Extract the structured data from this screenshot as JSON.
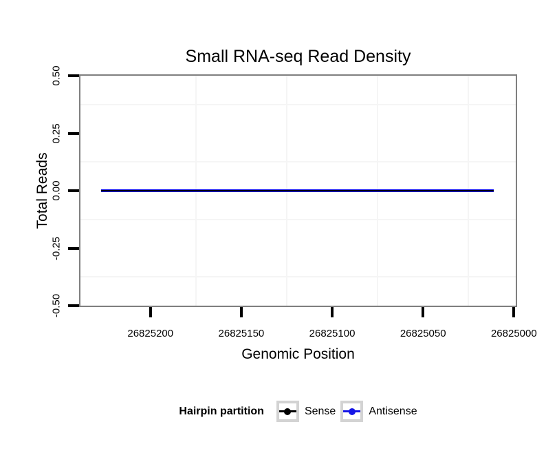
{
  "colors": {
    "background": "#FFFFFF",
    "panel_border": "#7F7F7F",
    "grid_minor": "#F5F5F5",
    "tick": "#000000",
    "text": "#000000",
    "legend_key_border": "#D3D3D3",
    "sense": "#000000",
    "antisense": "#1515E6"
  },
  "chart_data": {
    "type": "line",
    "title": "Small RNA-seq Read Density",
    "xlabel": "Genomic Position",
    "ylabel": "Total Reads",
    "grid": {
      "major": false,
      "minor": true
    },
    "x_axis": {
      "reversed": true,
      "domain_left": 26825238.5,
      "domain_right": 26824999.0,
      "ticks": [
        {
          "value": 26825200,
          "label": "26825200"
        },
        {
          "value": 26825150,
          "label": "26825150"
        },
        {
          "value": 26825100,
          "label": "26825100"
        },
        {
          "value": 26825050,
          "label": "26825050"
        },
        {
          "value": 26825000,
          "label": "26825000"
        }
      ],
      "minor_gridlines": [
        26825175,
        26825125,
        26825075,
        26825025
      ]
    },
    "y_axis": {
      "domain_top": 0.5,
      "domain_bottom": -0.5,
      "ticks": [
        {
          "value": 0.5,
          "label": "0.50"
        },
        {
          "value": 0.25,
          "label": "0.25"
        },
        {
          "value": 0.0,
          "label": "0.00"
        },
        {
          "value": -0.25,
          "label": "-0.25"
        },
        {
          "value": -0.5,
          "label": "-0.50"
        }
      ],
      "minor_gridlines": [
        0.375,
        0.125,
        -0.125,
        -0.375
      ]
    },
    "series": [
      {
        "name": "Sense",
        "color": "#000000",
        "y": 0,
        "x_start": 26825227,
        "x_end": 26825011
      },
      {
        "name": "Antisense",
        "color": "#1515E6",
        "y": 0,
        "x_start": 26825227,
        "x_end": 26825011
      }
    ],
    "legend": {
      "title": "Hairpin partition",
      "position": "bottom",
      "items": [
        {
          "label": "Sense",
          "color": "#000000"
        },
        {
          "label": "Antisense",
          "color": "#1515E6"
        }
      ]
    }
  }
}
